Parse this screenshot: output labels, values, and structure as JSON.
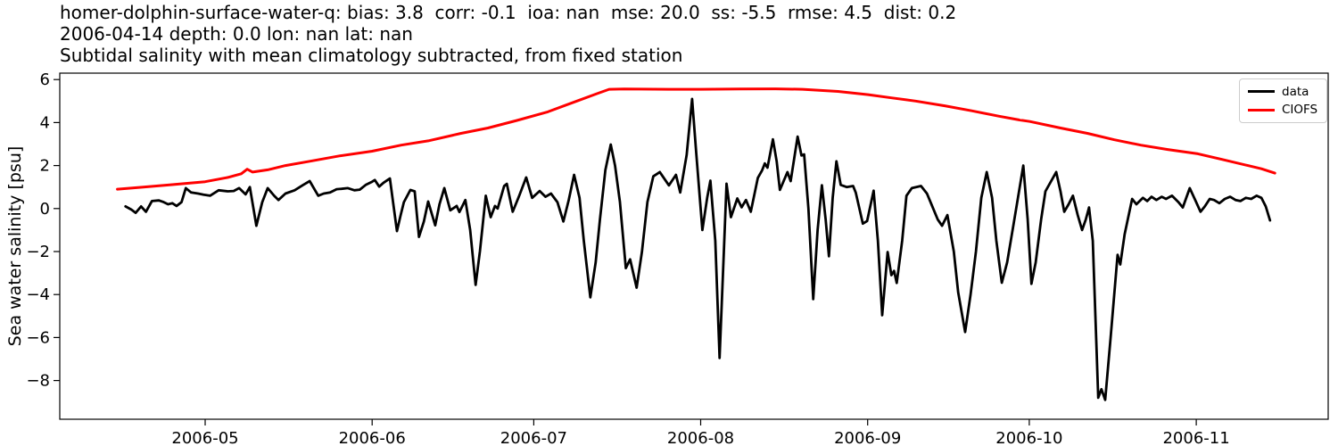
{
  "header": {
    "title_line1": "homer-dolphin-surface-water-q: bias: 3.8  corr: -0.1  ioa: nan  mse: 20.0  ss: -5.5  rmse: 4.5  dist: 0.2",
    "title_line2": "2006-04-14 depth: 0.0 lon: nan lat: nan",
    "title_line3": "Subtidal salinity with mean climatology subtracted, from fixed station"
  },
  "chart_data": {
    "type": "line",
    "title": "Subtidal salinity with mean climatology subtracted, from fixed station",
    "subtitle_stats": {
      "station": "homer-dolphin-surface-water-q",
      "bias": 3.8,
      "corr": -0.1,
      "ioa": "nan",
      "mse": 20.0,
      "ss": -5.5,
      "rmse": 4.5,
      "dist": 0.2,
      "start_date": "2006-04-14",
      "depth": 0.0,
      "lon": "nan",
      "lat": "nan"
    },
    "xlabel": "",
    "ylabel": "Sea water salinity [psu]",
    "ylim": [
      -9.8,
      6.3
    ],
    "x_epoch": "2006-04-14",
    "xlim_days": [
      -10,
      225.5
    ],
    "grid": false,
    "legend_position": "upper right",
    "x_ticks": [
      {
        "day": 17,
        "label": "2006-05"
      },
      {
        "day": 48,
        "label": "2006-06"
      },
      {
        "day": 78,
        "label": "2006-07"
      },
      {
        "day": 109,
        "label": "2006-08"
      },
      {
        "day": 140,
        "label": "2006-09"
      },
      {
        "day": 170,
        "label": "2006-10"
      },
      {
        "day": 201,
        "label": "2006-11"
      }
    ],
    "y_ticks": [
      6,
      4,
      2,
      0,
      -2,
      -4,
      -6,
      -8
    ],
    "legend": [
      {
        "name": "data",
        "color": "#000000"
      },
      {
        "name": "CIOFS",
        "color": "#ff0000"
      }
    ],
    "series": [
      {
        "name": "data",
        "color": "#000000",
        "width": 2.8,
        "points": [
          [
            2.2,
            0.1
          ],
          [
            3.3,
            -0.05
          ],
          [
            4.1,
            -0.2
          ],
          [
            5.1,
            0.1
          ],
          [
            6,
            -0.15
          ],
          [
            7.1,
            0.35
          ],
          [
            8.4,
            0.38
          ],
          [
            9.3,
            0.3
          ],
          [
            10.1,
            0.2
          ],
          [
            10.9,
            0.25
          ],
          [
            11.7,
            0.12
          ],
          [
            12.6,
            0.3
          ],
          [
            13.4,
            0.95
          ],
          [
            14.4,
            0.75
          ],
          [
            15.7,
            0.7
          ],
          [
            16.7,
            0.65
          ],
          [
            17.9,
            0.6
          ],
          [
            19.5,
            0.85
          ],
          [
            21.2,
            0.8
          ],
          [
            22.3,
            0.82
          ],
          [
            23.3,
            0.95
          ],
          [
            24.5,
            0.66
          ],
          [
            25.3,
            1.0
          ],
          [
            26.5,
            -0.8
          ],
          [
            27.6,
            0.3
          ],
          [
            28.6,
            0.95
          ],
          [
            29.8,
            0.6
          ],
          [
            30.6,
            0.4
          ],
          [
            31.9,
            0.7
          ],
          [
            33.6,
            0.85
          ],
          [
            35.2,
            1.1
          ],
          [
            36.4,
            1.28
          ],
          [
            37.4,
            0.85
          ],
          [
            38,
            0.6
          ],
          [
            39,
            0.7
          ],
          [
            40.2,
            0.75
          ],
          [
            41.4,
            0.9
          ],
          [
            42.3,
            0.92
          ],
          [
            43.5,
            0.95
          ],
          [
            44.7,
            0.85
          ],
          [
            45.7,
            0.88
          ],
          [
            46.8,
            1.1
          ],
          [
            48,
            1.25
          ],
          [
            48.5,
            1.33
          ],
          [
            49.3,
            1.02
          ],
          [
            50.1,
            1.2
          ],
          [
            51.3,
            1.4
          ],
          [
            52.6,
            -1.05
          ],
          [
            53.3,
            -0.3
          ],
          [
            53.9,
            0.3
          ],
          [
            55.1,
            0.87
          ],
          [
            55.9,
            0.8
          ],
          [
            56.7,
            -1.32
          ],
          [
            57.6,
            -0.6
          ],
          [
            58.4,
            0.33
          ],
          [
            59.7,
            -0.78
          ],
          [
            60.5,
            0.2
          ],
          [
            61.4,
            0.95
          ],
          [
            62.5,
            -0.08
          ],
          [
            63.7,
            0.12
          ],
          [
            64.2,
            -0.16
          ],
          [
            65.3,
            0.4
          ],
          [
            66.2,
            -1.0
          ],
          [
            67.2,
            -3.55
          ],
          [
            68,
            -2.0
          ],
          [
            69.1,
            0.6
          ],
          [
            70,
            -0.4
          ],
          [
            70.8,
            0.12
          ],
          [
            71.3,
            0
          ],
          [
            72.5,
            1.05
          ],
          [
            73,
            1.15
          ],
          [
            74.1,
            -0.15
          ],
          [
            75.3,
            0.6
          ],
          [
            76.6,
            1.45
          ],
          [
            77.7,
            0.5
          ],
          [
            79.1,
            0.82
          ],
          [
            80.2,
            0.55
          ],
          [
            81.2,
            0.7
          ],
          [
            82.4,
            0.3
          ],
          [
            83.5,
            -0.6
          ],
          [
            84.5,
            0.4
          ],
          [
            85.5,
            1.57
          ],
          [
            86.5,
            0.5
          ],
          [
            87.3,
            -1.5
          ],
          [
            88.5,
            -4.13
          ],
          [
            89.5,
            -2.5
          ],
          [
            90.3,
            -0.5
          ],
          [
            91.3,
            1.8
          ],
          [
            92.3,
            2.98
          ],
          [
            93.1,
            2.0
          ],
          [
            94,
            0.3
          ],
          [
            95.1,
            -2.77
          ],
          [
            95.9,
            -2.36
          ],
          [
            97.1,
            -3.68
          ],
          [
            98.1,
            -2.0
          ],
          [
            99.1,
            0.3
          ],
          [
            100.2,
            1.5
          ],
          [
            101.4,
            1.7
          ],
          [
            103.1,
            1.08
          ],
          [
            104.4,
            1.57
          ],
          [
            105.2,
            0.75
          ],
          [
            106.4,
            2.5
          ],
          [
            107.4,
            5.1
          ],
          [
            108.2,
            2.5
          ],
          [
            109.3,
            -1.0
          ],
          [
            110.2,
            0.5
          ],
          [
            110.8,
            1.3
          ],
          [
            111.7,
            -1.5
          ],
          [
            112.5,
            -6.95
          ],
          [
            113.3,
            -2.0
          ],
          [
            113.8,
            1.16
          ],
          [
            114.6,
            -0.4
          ],
          [
            115.8,
            0.47
          ],
          [
            116.6,
            0.06
          ],
          [
            117.4,
            0.4
          ],
          [
            118.3,
            -0.15
          ],
          [
            119.6,
            1.43
          ],
          [
            120.4,
            1.78
          ],
          [
            120.9,
            2.1
          ],
          [
            121.4,
            1.9
          ],
          [
            122.4,
            3.22
          ],
          [
            123.1,
            2.2
          ],
          [
            123.7,
            0.87
          ],
          [
            125.1,
            1.7
          ],
          [
            125.7,
            1.28
          ],
          [
            127,
            3.35
          ],
          [
            127.7,
            2.47
          ],
          [
            128.2,
            2.52
          ],
          [
            129,
            0
          ],
          [
            129.9,
            -4.21
          ],
          [
            130.7,
            -1.0
          ],
          [
            131.5,
            1.09
          ],
          [
            132.2,
            -0.5
          ],
          [
            132.8,
            -2.22
          ],
          [
            133.5,
            0.5
          ],
          [
            134.2,
            2.2
          ],
          [
            135,
            1.1
          ],
          [
            136.1,
            1.0
          ],
          [
            137.3,
            1.05
          ],
          [
            137.8,
            0.74
          ],
          [
            139.1,
            -0.7
          ],
          [
            139.9,
            -0.58
          ],
          [
            141.1,
            0.83
          ],
          [
            141.9,
            -1.5
          ],
          [
            142.7,
            -4.96
          ],
          [
            143.7,
            -2.02
          ],
          [
            144.4,
            -3.1
          ],
          [
            144.9,
            -2.9
          ],
          [
            145.4,
            -3.46
          ],
          [
            146.4,
            -1.5
          ],
          [
            147.2,
            0.6
          ],
          [
            148.2,
            0.95
          ],
          [
            149.9,
            1.05
          ],
          [
            151,
            0.7
          ],
          [
            152,
            0.1
          ],
          [
            153,
            -0.5
          ],
          [
            153.8,
            -0.8
          ],
          [
            154.8,
            -0.3
          ],
          [
            156,
            -2.0
          ],
          [
            156.8,
            -3.9
          ],
          [
            158.1,
            -5.74
          ],
          [
            159.1,
            -4.0
          ],
          [
            160.1,
            -2.0
          ],
          [
            161.1,
            0.5
          ],
          [
            162.1,
            1.7
          ],
          [
            163.1,
            0.5
          ],
          [
            163.9,
            -1.5
          ],
          [
            164.9,
            -3.45
          ],
          [
            165.9,
            -2.5
          ],
          [
            167.1,
            -0.7
          ],
          [
            167.9,
            0.5
          ],
          [
            168.9,
            2.0
          ],
          [
            169.7,
            -0.5
          ],
          [
            170.4,
            -3.5
          ],
          [
            171.2,
            -2.5
          ],
          [
            172.2,
            -0.5
          ],
          [
            173,
            0.8
          ],
          [
            175,
            1.7
          ],
          [
            175.8,
            0.8
          ],
          [
            176.5,
            -0.15
          ],
          [
            177.3,
            0.2
          ],
          [
            178.1,
            0.6
          ],
          [
            179,
            -0.3
          ],
          [
            179.8,
            -1.0
          ],
          [
            180.5,
            -0.5
          ],
          [
            181.1,
            0.05
          ],
          [
            181.8,
            -1.5
          ],
          [
            182.8,
            -8.8
          ],
          [
            183.4,
            -8.4
          ],
          [
            184.1,
            -8.9
          ],
          [
            185.1,
            -6.0
          ],
          [
            186.4,
            -2.15
          ],
          [
            186.9,
            -2.6
          ],
          [
            187.7,
            -1.2
          ],
          [
            189.1,
            0.45
          ],
          [
            189.9,
            0.2
          ],
          [
            191.1,
            0.5
          ],
          [
            191.9,
            0.35
          ],
          [
            192.7,
            0.55
          ],
          [
            193.6,
            0.4
          ],
          [
            194.6,
            0.55
          ],
          [
            195.4,
            0.45
          ],
          [
            196.5,
            0.6
          ],
          [
            197.7,
            0.3
          ],
          [
            198.5,
            0.05
          ],
          [
            199.8,
            0.95
          ],
          [
            200.8,
            0.4
          ],
          [
            201.8,
            -0.15
          ],
          [
            202.6,
            0.1
          ],
          [
            203.5,
            0.45
          ],
          [
            204.3,
            0.4
          ],
          [
            205.3,
            0.25
          ],
          [
            206.3,
            0.45
          ],
          [
            207.3,
            0.55
          ],
          [
            208.3,
            0.4
          ],
          [
            209.2,
            0.35
          ],
          [
            210.2,
            0.5
          ],
          [
            211.2,
            0.45
          ],
          [
            212.2,
            0.6
          ],
          [
            213.1,
            0.5
          ],
          [
            213.9,
            0.1
          ],
          [
            214.7,
            -0.55
          ]
        ]
      },
      {
        "name": "CIOFS",
        "color": "#ff0000",
        "width": 3,
        "points": [
          [
            0.7,
            0.9
          ],
          [
            5.5,
            1.0
          ],
          [
            10.4,
            1.1
          ],
          [
            17,
            1.25
          ],
          [
            21.2,
            1.45
          ],
          [
            23.7,
            1.62
          ],
          [
            24.8,
            1.83
          ],
          [
            25.8,
            1.7
          ],
          [
            28.6,
            1.8
          ],
          [
            31.9,
            2.0
          ],
          [
            36.4,
            2.2
          ],
          [
            41.9,
            2.45
          ],
          [
            48,
            2.67
          ],
          [
            53.4,
            2.95
          ],
          [
            58.4,
            3.15
          ],
          [
            64.5,
            3.5
          ],
          [
            69.5,
            3.75
          ],
          [
            74.9,
            4.1
          ],
          [
            80.6,
            4.5
          ],
          [
            86,
            5.0
          ],
          [
            89.8,
            5.35
          ],
          [
            92,
            5.55
          ],
          [
            94.8,
            5.56
          ],
          [
            103.1,
            5.55
          ],
          [
            109,
            5.55
          ],
          [
            116.3,
            5.56
          ],
          [
            122.9,
            5.57
          ],
          [
            127.9,
            5.55
          ],
          [
            134.5,
            5.45
          ],
          [
            140.1,
            5.3
          ],
          [
            144.4,
            5.15
          ],
          [
            148.9,
            5.0
          ],
          [
            154.3,
            4.78
          ],
          [
            159.3,
            4.55
          ],
          [
            164.3,
            4.3
          ],
          [
            168.2,
            4.12
          ],
          [
            170.1,
            4.05
          ],
          [
            175.8,
            3.75
          ],
          [
            180.8,
            3.5
          ],
          [
            185.8,
            3.2
          ],
          [
            190.7,
            2.95
          ],
          [
            195.7,
            2.75
          ],
          [
            201.3,
            2.55
          ],
          [
            205.6,
            2.3
          ],
          [
            210.6,
            2.0
          ],
          [
            213.1,
            1.85
          ],
          [
            215.6,
            1.65
          ]
        ]
      }
    ]
  }
}
